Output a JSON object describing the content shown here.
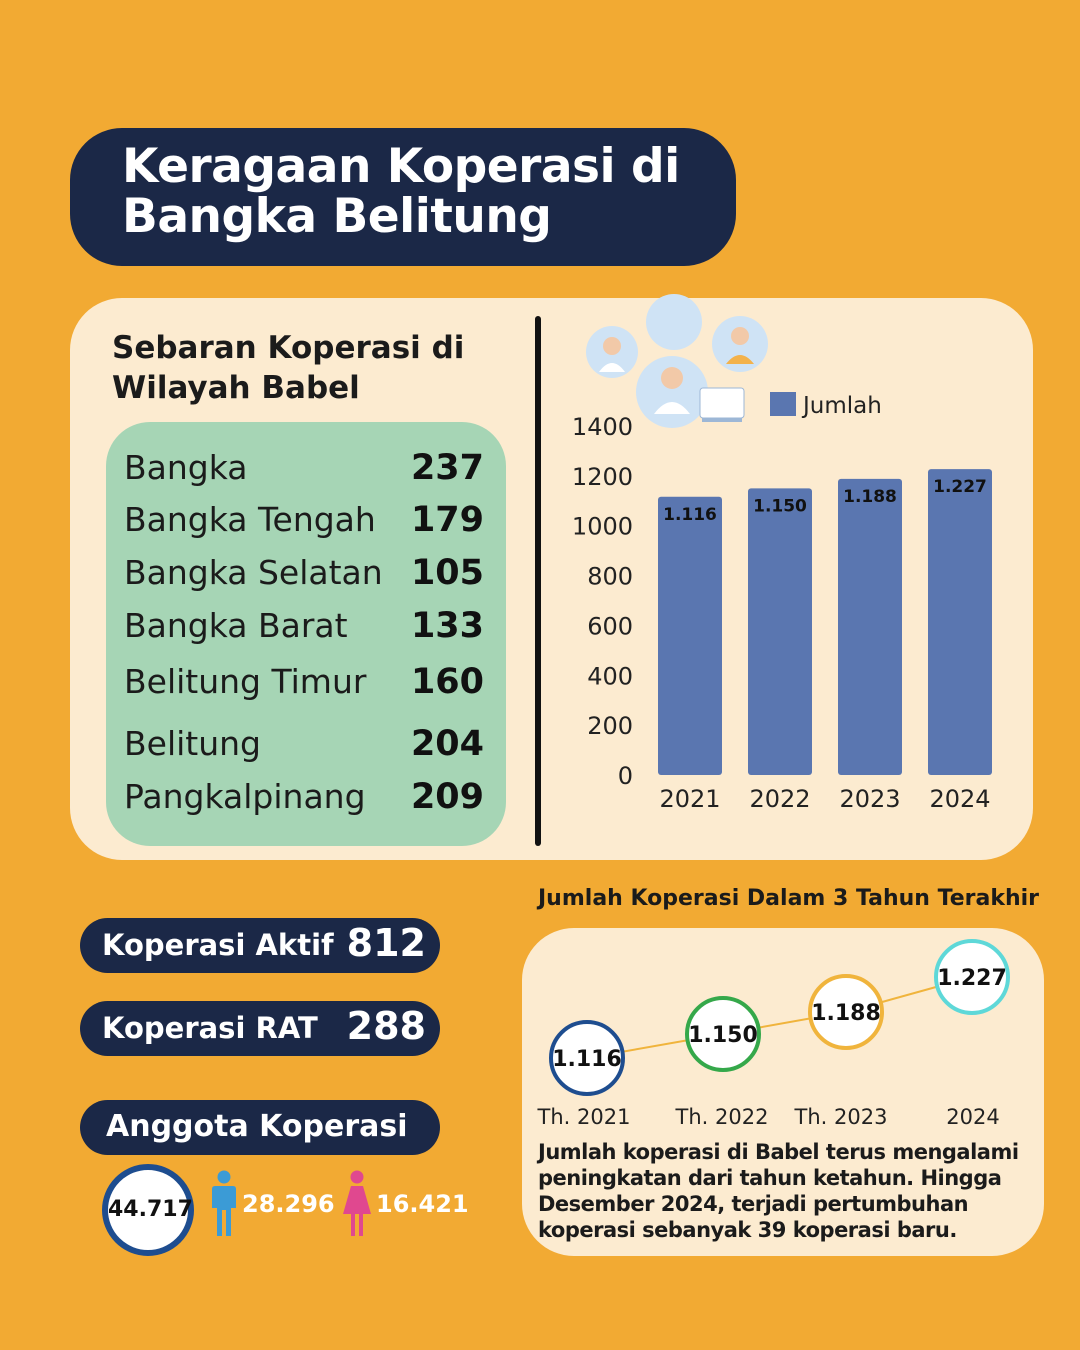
{
  "title": {
    "line1": "Keragaan Koperasi di",
    "line2": "Bangka Belitung"
  },
  "distribution": {
    "heading_line1": "Sebaran Koperasi di",
    "heading_line2": "Wilayah Babel",
    "regions": [
      {
        "name": "Bangka",
        "value": "237"
      },
      {
        "name": "Bangka Tengah",
        "value": "179"
      },
      {
        "name": "Bangka Selatan",
        "value": "105"
      },
      {
        "name": "Bangka Barat",
        "value": "133"
      },
      {
        "name": "Belitung Timur",
        "value": "160"
      },
      {
        "name": "Belitung",
        "value": "204"
      },
      {
        "name": "Pangkalpinang",
        "value": "209"
      }
    ]
  },
  "chart_data": {
    "type": "bar",
    "title": "",
    "categories": [
      "2021",
      "2022",
      "2023",
      "2024"
    ],
    "values": [
      1116,
      1150,
      1188,
      1227
    ],
    "data_labels": [
      "1.116",
      "1.150",
      "1.188",
      "1.227"
    ],
    "legend": "Jumlah",
    "legend_position": "top-right",
    "ylim": [
      0,
      1400
    ],
    "yticks": [
      0,
      200,
      400,
      600,
      800,
      1000,
      1200,
      1400
    ],
    "colors": {
      "bar": "#5A76B0"
    }
  },
  "stats": {
    "active_label": "Koperasi Aktif",
    "active_value": "812",
    "rat_label": "Koperasi RAT",
    "rat_value": "288",
    "members_label": "Anggota Koperasi",
    "members_total": "44.717",
    "members_male": "28.296",
    "members_female": "16.421"
  },
  "trend": {
    "title": "Jumlah Koperasi Dalam 3 Tahun Terakhir",
    "points": [
      {
        "label": "Th. 2021",
        "value": "1.116",
        "color": "#1E4D8F"
      },
      {
        "label": "Th. 2022",
        "value": "1.150",
        "color": "#35A84A"
      },
      {
        "label": "Th. 2023",
        "value": "1.188",
        "color": "#F0B43C"
      },
      {
        "label": "2024",
        "value": "1.227",
        "color": "#5ED8D8"
      }
    ],
    "note": "Jumlah koperasi di Babel terus mengalami peningkatan dari tahun ketahun.  Hingga Desember 2024, terjadi pertumbuhan koperasi sebanyak 39 koperasi baru."
  },
  "colors": {
    "background": "#F2AA33",
    "navy": "#1B2847",
    "panel": "#FCEBD0",
    "green": "#A6D5B5",
    "male": "#3B9BD6",
    "female": "#E0488F"
  }
}
